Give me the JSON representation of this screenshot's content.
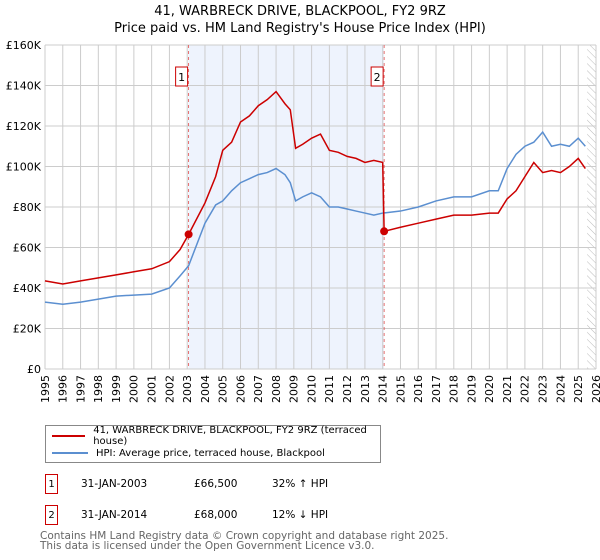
{
  "chart_data": {
    "type": "line",
    "title": "41, WARBRECK DRIVE, BLACKPOOL, FY2 9RZ",
    "subtitle": "Price paid vs. HM Land Registry's House Price Index (HPI)",
    "xlim": [
      1995,
      2026
    ],
    "ylim": [
      0,
      160000
    ],
    "y_ticks": [
      {
        "v": 0,
        "label": "£0"
      },
      {
        "v": 20000,
        "label": "£20K"
      },
      {
        "v": 40000,
        "label": "£40K"
      },
      {
        "v": 60000,
        "label": "£60K"
      },
      {
        "v": 80000,
        "label": "£80K"
      },
      {
        "v": 100000,
        "label": "£100K"
      },
      {
        "v": 120000,
        "label": "£120K"
      },
      {
        "v": 140000,
        "label": "£140K"
      },
      {
        "v": 160000,
        "label": "£160K"
      }
    ],
    "x_ticks": [
      "1995",
      "1996",
      "1997",
      "1998",
      "1999",
      "2000",
      "2001",
      "2002",
      "2003",
      "2004",
      "2005",
      "2006",
      "2007",
      "2008",
      "2009",
      "2010",
      "2011",
      "2012",
      "2013",
      "2014",
      "2015",
      "2016",
      "2017",
      "2018",
      "2019",
      "2020",
      "2021",
      "2022",
      "2023",
      "2024",
      "2025",
      "2026"
    ],
    "grid": true,
    "series": [
      {
        "name": "41, WARBRECK DRIVE, BLACKPOOL, FY2 9RZ (terraced house)",
        "color": "#cc0000",
        "x": [
          1995,
          1996,
          1997,
          1998,
          1999,
          2000,
          2001,
          2002,
          2002.6,
          2003.08,
          2004,
          2004.6,
          2005,
          2005.5,
          2006,
          2006.5,
          2007,
          2007.5,
          2008,
          2008.5,
          2008.8,
          2009.1,
          2009.5,
          2010,
          2010.5,
          2011,
          2011.5,
          2012,
          2012.5,
          2013,
          2013.5,
          2014.0,
          2014.08,
          2015,
          2016,
          2017,
          2018,
          2019,
          2020,
          2020.5,
          2021,
          2021.5,
          2022,
          2022.5,
          2023,
          2023.5,
          2024,
          2024.5,
          2025,
          2025.4
        ],
        "y": [
          43500,
          42000,
          43500,
          45000,
          46500,
          48000,
          49500,
          53000,
          59000,
          66500,
          82000,
          95000,
          108000,
          112000,
          122000,
          125000,
          130000,
          133000,
          137000,
          131000,
          128000,
          109000,
          111000,
          114000,
          116000,
          108000,
          107000,
          105000,
          104000,
          102000,
          103000,
          102000,
          68000,
          70000,
          72000,
          74000,
          76000,
          76000,
          77000,
          77000,
          84000,
          88000,
          95000,
          102000,
          97000,
          98000,
          97000,
          100000,
          104000,
          99000
        ]
      },
      {
        "name": "HPI: Average price, terraced house, Blackpool",
        "color": "#5b8fd0",
        "x": [
          1995,
          1996,
          1997,
          1998,
          1999,
          2000,
          2001,
          2002,
          2002.6,
          2003.08,
          2004,
          2004.6,
          2005,
          2005.5,
          2006,
          2006.5,
          2007,
          2007.5,
          2008,
          2008.5,
          2008.8,
          2009.1,
          2009.5,
          2010,
          2010.5,
          2011,
          2011.5,
          2012,
          2012.5,
          2013,
          2013.5,
          2014.0,
          2015,
          2016,
          2017,
          2018,
          2019,
          2020,
          2020.5,
          2021,
          2021.5,
          2022,
          2022.5,
          2023,
          2023.5,
          2024,
          2024.5,
          2025,
          2025.4
        ],
        "y": [
          33000,
          32000,
          33000,
          34500,
          36000,
          36500,
          37000,
          40000,
          46000,
          51000,
          72000,
          81000,
          83000,
          88000,
          92000,
          94000,
          96000,
          97000,
          99000,
          96000,
          92000,
          83000,
          85000,
          87000,
          85000,
          80000,
          80000,
          79000,
          78000,
          77000,
          76000,
          77000,
          78000,
          80000,
          83000,
          85000,
          85000,
          88000,
          88000,
          99000,
          106000,
          110000,
          112000,
          117000,
          110000,
          111000,
          110000,
          114000,
          110000
        ]
      }
    ],
    "annotations": [
      {
        "label": "1",
        "x": 2003.08,
        "y": 66500
      },
      {
        "label": "2",
        "x": 2014.08,
        "y": 68000
      }
    ],
    "shaded_range": [
      2003.08,
      2014.08
    ],
    "hatched_from": 2025.5
  },
  "transactions": [
    {
      "num": "1",
      "date": "31-JAN-2003",
      "price": "£66,500",
      "hpi": "32% ↑ HPI"
    },
    {
      "num": "2",
      "date": "31-JAN-2014",
      "price": "£68,000",
      "hpi": "12% ↓ HPI"
    }
  ],
  "footer": {
    "line1": "Contains HM Land Registry data © Crown copyright and database right 2025.",
    "line2": "This data is licensed under the Open Government Licence v3.0."
  }
}
